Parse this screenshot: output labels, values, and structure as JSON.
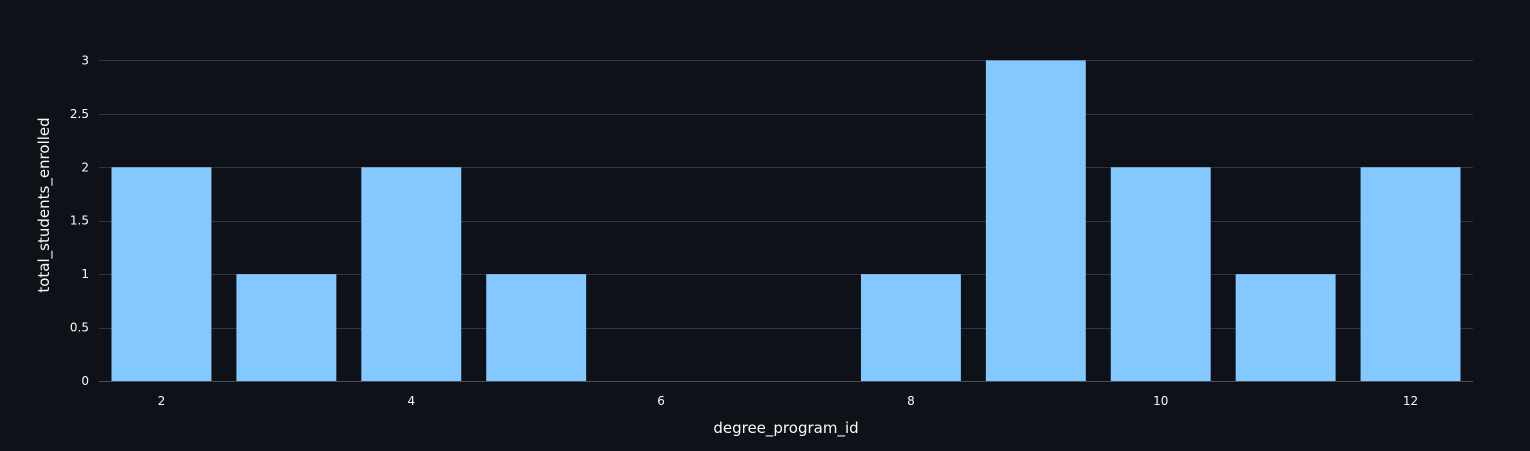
{
  "chart_data": {
    "type": "bar",
    "x": [
      2,
      3,
      4,
      5,
      8,
      9,
      10,
      11,
      12
    ],
    "values": [
      2,
      1,
      2,
      1,
      1,
      3,
      2,
      1,
      2
    ],
    "xlabel": "degree_program_id",
    "ylabel": "total_students_enrolled",
    "xlim": [
      1.5,
      12.5
    ],
    "ylim": [
      0,
      3.2
    ],
    "xticks": [
      2,
      4,
      6,
      8,
      10,
      12
    ],
    "yticks": [
      0,
      0.5,
      1,
      1.5,
      2,
      2.5,
      3
    ],
    "xtick_labels": [
      "2",
      "4",
      "6",
      "8",
      "10",
      "12"
    ],
    "ytick_labels": [
      "0",
      "0.5",
      "1",
      "1.5",
      "2",
      "2.5",
      "3"
    ],
    "grid": true,
    "colors": {
      "background": "#0e1117",
      "bar": "#83c9ff",
      "grid": "#31333f",
      "axis_line": "#4b4f5c",
      "text": "#fafafa"
    }
  }
}
